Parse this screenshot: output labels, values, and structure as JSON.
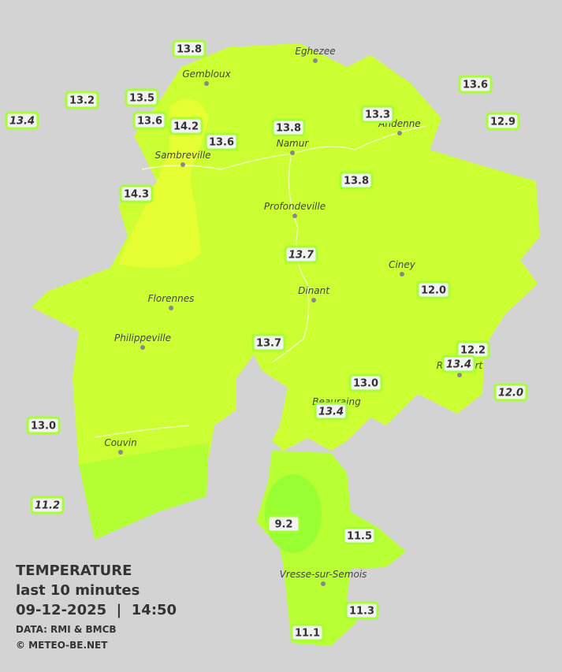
{
  "stations": [
    {
      "label": "13.8",
      "italic": false
    },
    {
      "label": "13.2",
      "italic": false
    },
    {
      "label": "13.4",
      "italic": true
    },
    {
      "label": "13.5",
      "italic": false
    },
    {
      "label": "13.6",
      "italic": false
    },
    {
      "label": "14.2",
      "italic": false
    },
    {
      "label": "13.6",
      "italic": false
    },
    {
      "label": "13.8",
      "italic": false
    },
    {
      "label": "13.3",
      "italic": false
    },
    {
      "label": "13.6",
      "italic": false
    },
    {
      "label": "12.9",
      "italic": false
    },
    {
      "label": "14.3",
      "italic": false
    },
    {
      "label": "13.8",
      "italic": false
    },
    {
      "label": "13.7",
      "italic": true
    },
    {
      "label": "12.0",
      "italic": false
    },
    {
      "label": "13.7",
      "italic": false
    },
    {
      "label": "12.2",
      "italic": false
    },
    {
      "label": "13.4",
      "italic": true
    },
    {
      "label": "13.0",
      "italic": false
    },
    {
      "label": "12.0",
      "italic": true
    },
    {
      "label": "13.4",
      "italic": true
    },
    {
      "label": "13.0",
      "italic": false
    },
    {
      "label": "11.2",
      "italic": true
    },
    {
      "label": "9.2",
      "italic": false
    },
    {
      "label": "11.5",
      "italic": false
    },
    {
      "label": "11.3",
      "italic": false
    },
    {
      "label": "11.1",
      "italic": false
    }
  ],
  "cities": [
    "Eghezee",
    "Gembloux",
    "Andenne",
    "Namur",
    "Sambreville",
    "Profondeville",
    "Ciney",
    "Dinant",
    "Florennes",
    "Philippeville",
    "Rochefort",
    "Beauraing",
    "Couvin",
    "Vresse-sur-Semois"
  ],
  "legend": {
    "title": "TEMPERATURE",
    "period": "last 10 minutes",
    "datetime": "09-12-2025  |  14:50",
    "source": "DATA: RMI & BMCB",
    "copyright": "© METEO-BE.NET"
  }
}
